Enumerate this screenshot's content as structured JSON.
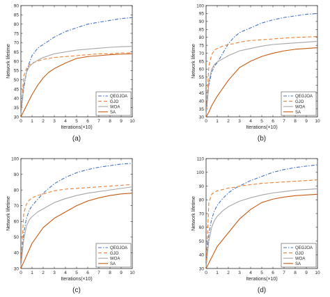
{
  "figure": {
    "panels_label": [
      "(a)",
      "(b)",
      "(c)",
      "(d)"
    ]
  },
  "chart_data": [
    {
      "type": "line",
      "panel_label": "(a)",
      "xlabel": "Iterations(×10)",
      "ylabel": "Network lifetime",
      "xlim": [
        0,
        10
      ],
      "ylim": [
        30,
        90
      ],
      "xticks": [
        0,
        1,
        2,
        3,
        4,
        5,
        6,
        7,
        8,
        9,
        10
      ],
      "yticks": [
        30,
        35,
        40,
        45,
        50,
        55,
        60,
        65,
        70,
        75,
        80,
        85,
        90
      ],
      "grid": false,
      "legend": "bottom-right",
      "x": [
        0,
        0.25,
        0.5,
        0.75,
        1,
        1.5,
        2,
        2.5,
        3,
        4,
        5,
        6,
        7,
        8,
        9,
        10
      ],
      "series": [
        {
          "name": "QEGJOA",
          "color": "#4472c4",
          "style": "dashdot",
          "values": [
            31,
            45,
            54,
            59,
            63,
            67,
            69,
            71,
            73,
            76,
            78,
            80,
            81,
            82,
            83,
            83.5
          ]
        },
        {
          "name": "GJO",
          "color": "#ed7d31",
          "style": "dashed",
          "values": [
            31,
            52,
            56,
            58,
            59,
            60,
            61,
            61.5,
            62,
            62.5,
            63,
            63.5,
            64,
            64,
            64.5,
            64.5
          ]
        },
        {
          "name": "WOA",
          "color": "#a5a5a5",
          "style": "solid",
          "values": [
            31,
            47,
            54,
            57,
            58.5,
            60.5,
            62,
            63,
            64,
            65,
            66,
            66.5,
            67,
            67.5,
            67.8,
            68
          ]
        },
        {
          "name": "SA",
          "color": "#c55a11",
          "style": "solid",
          "values": [
            30,
            33,
            36,
            39,
            42,
            47,
            51,
            54,
            56,
            59,
            61.5,
            62.5,
            63,
            63.5,
            63.8,
            64
          ]
        }
      ]
    },
    {
      "type": "line",
      "panel_label": "(b)",
      "xlabel": "Iterations(×10)",
      "ylabel": "Network lifetime",
      "xlim": [
        0,
        10
      ],
      "ylim": [
        30,
        100
      ],
      "xticks": [
        0,
        1,
        2,
        3,
        4,
        5,
        6,
        7,
        8,
        9,
        10
      ],
      "yticks": [
        30,
        35,
        40,
        45,
        50,
        55,
        60,
        65,
        70,
        75,
        80,
        85,
        90,
        95,
        100
      ],
      "grid": false,
      "legend": "bottom-right",
      "x": [
        0,
        0.25,
        0.5,
        0.75,
        1,
        1.5,
        2,
        2.5,
        3,
        4,
        5,
        6,
        7,
        8,
        9,
        10
      ],
      "series": [
        {
          "name": "QEGJOA",
          "color": "#4472c4",
          "style": "dashdot",
          "values": [
            31,
            50,
            58,
            62,
            64,
            70,
            76,
            80,
            83,
            86,
            89,
            91,
            92.5,
            93.5,
            94.5,
            95
          ]
        },
        {
          "name": "GJO",
          "color": "#ed7d31",
          "style": "dashed",
          "values": [
            31,
            62,
            69,
            72,
            73,
            74.5,
            75.5,
            76,
            77,
            78,
            78.5,
            79,
            79.5,
            80,
            80.2,
            80.5
          ]
        },
        {
          "name": "WOA",
          "color": "#a5a5a5",
          "style": "solid",
          "values": [
            31,
            52,
            60,
            63,
            64.5,
            66.5,
            68.5,
            70,
            71.5,
            73,
            74.5,
            75.5,
            76,
            76.5,
            77,
            77.5
          ]
        },
        {
          "name": "SA",
          "color": "#c55a11",
          "style": "solid",
          "values": [
            30,
            33,
            37,
            40,
            43,
            48,
            53,
            57,
            61,
            65,
            68,
            70,
            71.5,
            72.5,
            73,
            73.5
          ]
        }
      ]
    },
    {
      "type": "line",
      "panel_label": "(c)",
      "xlabel": "Iterations(×10)",
      "ylabel": "Network lifetime",
      "xlim": [
        0,
        10
      ],
      "ylim": [
        30,
        100
      ],
      "xticks": [
        0,
        1,
        2,
        3,
        4,
        5,
        6,
        7,
        8,
        9,
        10
      ],
      "yticks": [
        30,
        40,
        50,
        60,
        70,
        80,
        90,
        100
      ],
      "grid": false,
      "legend": "bottom-right",
      "x": [
        0,
        0.25,
        0.5,
        0.75,
        1,
        1.5,
        2,
        2.5,
        3,
        4,
        5,
        6,
        7,
        8,
        9,
        10
      ],
      "series": [
        {
          "name": "QEGJOA",
          "color": "#4472c4",
          "style": "dashdot",
          "values": [
            31,
            52,
            62,
            67,
            70,
            74,
            78,
            81,
            84,
            88,
            91,
            93,
            94.5,
            95.5,
            96.5,
            97
          ]
        },
        {
          "name": "GJO",
          "color": "#ed7d31",
          "style": "dashed",
          "values": [
            31,
            65,
            71,
            73.5,
            75,
            76.5,
            77.5,
            78.5,
            79.5,
            80.5,
            81,
            81.5,
            82,
            82.5,
            83,
            83.5
          ]
        },
        {
          "name": "WOA",
          "color": "#a5a5a5",
          "style": "solid",
          "values": [
            31,
            48,
            57,
            61,
            63,
            66,
            68,
            70,
            72,
            74.5,
            76.5,
            78,
            79,
            80,
            81,
            82
          ]
        },
        {
          "name": "SA",
          "color": "#c55a11",
          "style": "solid",
          "values": [
            30,
            34,
            38,
            42,
            46,
            51,
            56,
            59,
            62,
            66,
            70,
            73,
            75,
            76.5,
            77.5,
            78
          ]
        }
      ]
    },
    {
      "type": "line",
      "panel_label": "(d)",
      "xlabel": "Iterations(×10)",
      "ylabel": "Network lifetime",
      "xlim": [
        0,
        10
      ],
      "ylim": [
        30,
        110
      ],
      "xticks": [
        0,
        1,
        2,
        3,
        4,
        5,
        6,
        7,
        8,
        9,
        10
      ],
      "yticks": [
        30,
        40,
        50,
        60,
        70,
        80,
        90,
        100,
        110
      ],
      "grid": false,
      "legend": "bottom-right",
      "x": [
        0,
        0.25,
        0.5,
        0.75,
        1,
        1.5,
        2,
        2.5,
        3,
        4,
        5,
        6,
        7,
        8,
        9,
        10
      ],
      "series": [
        {
          "name": "QEGJOA",
          "color": "#4472c4",
          "style": "dashdot",
          "values": [
            31,
            55,
            66,
            72,
            76,
            81,
            85,
            88,
            90,
            94,
            97,
            100,
            102,
            103.5,
            104.5,
            105.5
          ]
        },
        {
          "name": "GJO",
          "color": "#ed7d31",
          "style": "dashed",
          "values": [
            31,
            78,
            84,
            85.5,
            86.5,
            87.5,
            88.5,
            89,
            90,
            91,
            92,
            92.5,
            93,
            93.5,
            94,
            94.5
          ]
        },
        {
          "name": "WOA",
          "color": "#a5a5a5",
          "style": "solid",
          "values": [
            31,
            50,
            60,
            65,
            68,
            72,
            75,
            77,
            79,
            81.5,
            83.5,
            85,
            86,
            87,
            87.5,
            88
          ]
        },
        {
          "name": "SA",
          "color": "#c55a11",
          "style": "solid",
          "values": [
            30,
            34,
            38,
            42,
            46,
            51,
            56,
            61,
            66,
            73,
            78,
            80.5,
            82,
            83,
            83.5,
            84
          ]
        }
      ]
    }
  ]
}
